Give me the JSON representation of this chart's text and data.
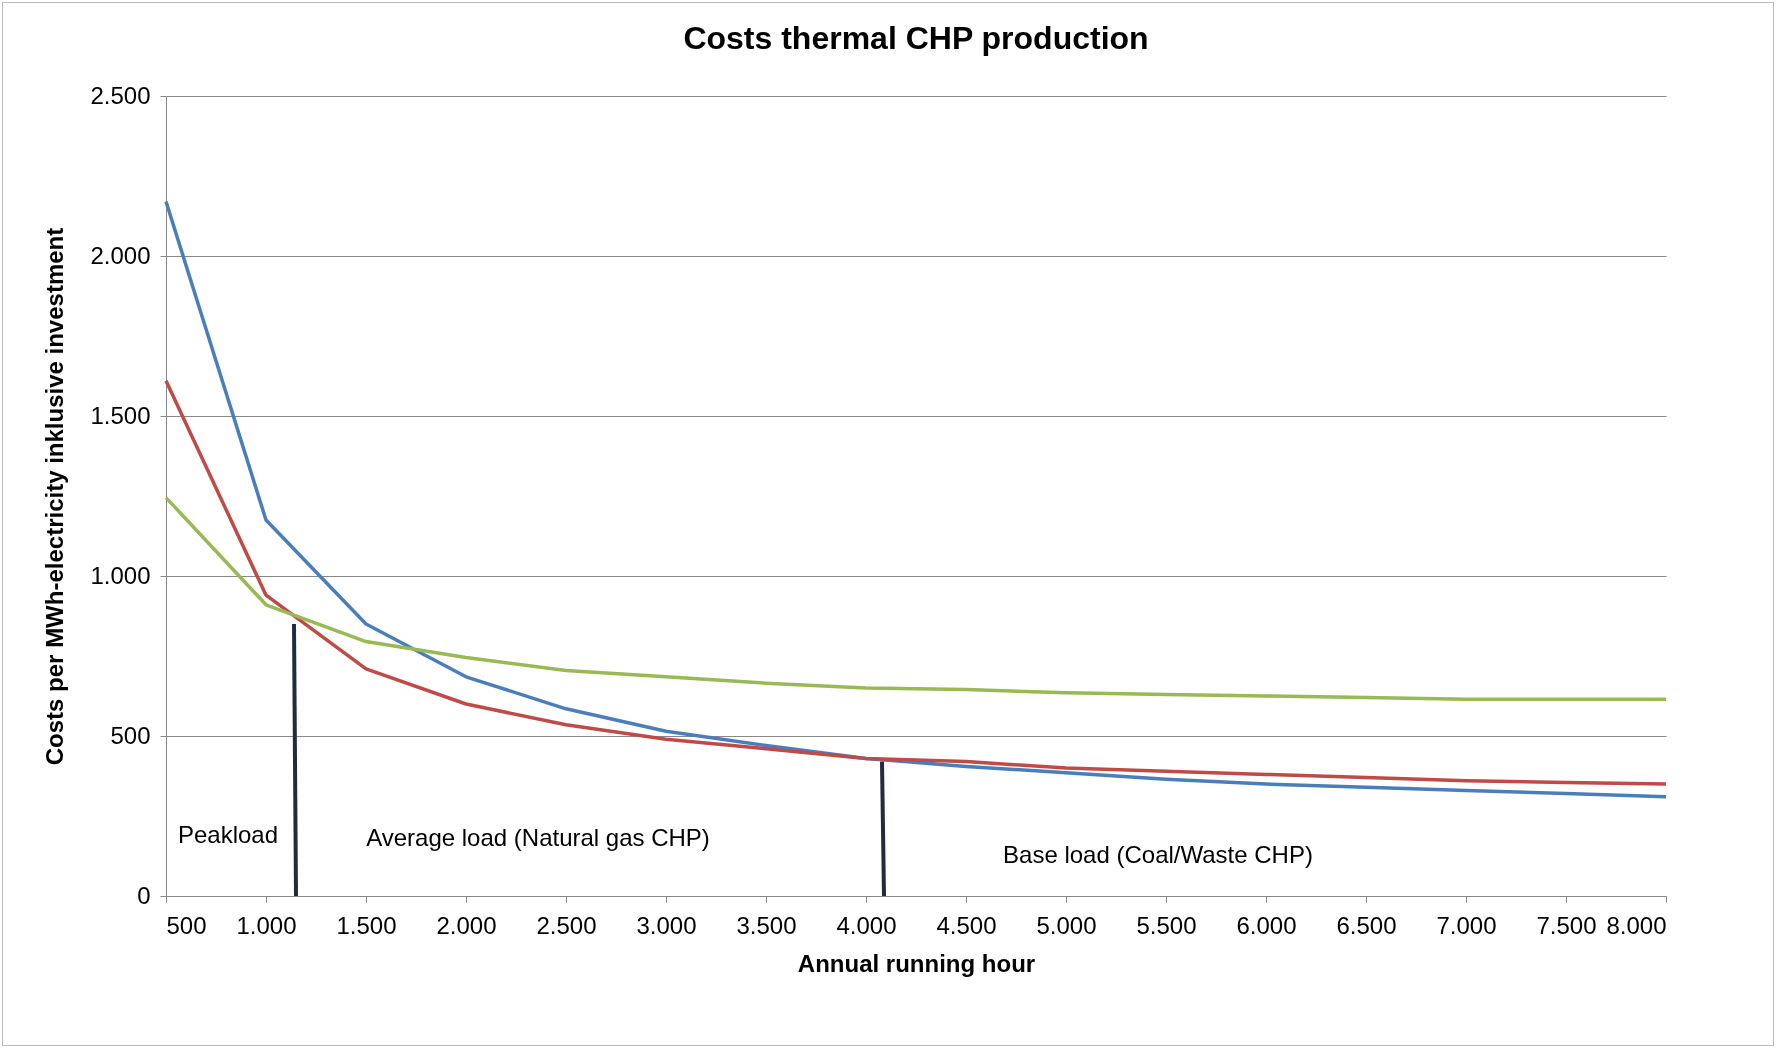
{
  "chart_data": {
    "type": "line",
    "title": "Costs thermal CHP production",
    "xlabel": "Annual running hour",
    "ylabel": "Costs per MWh-electricity inklusive investment",
    "x": [
      500,
      1000,
      1500,
      2000,
      2500,
      3000,
      3500,
      4000,
      4500,
      5000,
      5500,
      6000,
      6500,
      7000,
      7500,
      8000
    ],
    "series": [
      {
        "color": "#4a7ebb",
        "values": [
          2170,
          1175,
          850,
          685,
          585,
          515,
          470,
          430,
          405,
          385,
          365,
          350,
          340,
          330,
          320,
          310
        ]
      },
      {
        "color": "#be4b48",
        "values": [
          1610,
          940,
          710,
          600,
          535,
          490,
          460,
          430,
          420,
          400,
          390,
          380,
          370,
          360,
          355,
          350
        ]
      },
      {
        "color": "#98b954",
        "values": [
          1245,
          910,
          795,
          745,
          705,
          685,
          665,
          650,
          645,
          635,
          630,
          625,
          620,
          615,
          615,
          615
        ]
      },
      {
        "color": "#1f2d3d",
        "x": [
          1140,
          1150
        ],
        "values": [
          850,
          0
        ]
      },
      {
        "color": "#1f2d3d",
        "x": [
          4080,
          4090
        ],
        "values": [
          420,
          0
        ]
      }
    ],
    "xlim": [
      500,
      8000
    ],
    "xticks": [
      500,
      {
        "value": 1000,
        "label": "1.000"
      },
      {
        "value": 1500,
        "label": "1.500"
      },
      {
        "value": 2000,
        "label": "2.000"
      },
      {
        "value": 2500,
        "label": "2.500"
      },
      {
        "value": 3000,
        "label": "3.000"
      },
      {
        "value": 3500,
        "label": "3.500"
      },
      {
        "value": 4000,
        "label": "4.000"
      },
      {
        "value": 4500,
        "label": "4.500"
      },
      {
        "value": 5000,
        "label": "5.000"
      },
      {
        "value": 5500,
        "label": "5.500"
      },
      {
        "value": 6000,
        "label": "6.000"
      },
      {
        "value": 6500,
        "label": "6.500"
      },
      {
        "value": 7000,
        "label": "7.000"
      },
      {
        "value": 7500,
        "label": "7.500"
      },
      {
        "value": 8000,
        "label": "8.000"
      }
    ],
    "ylim": [
      0,
      2500
    ],
    "yticks": [
      0,
      500,
      {
        "value": 1000,
        "label": "1.000"
      },
      {
        "value": 1500,
        "label": "1.500"
      },
      {
        "value": 2000,
        "label": "2.000"
      },
      {
        "value": 2500,
        "label": "2.500"
      }
    ],
    "grid": "y",
    "annotations": [
      "Peakload",
      "Average load (Natural gas CHP)",
      "Base load (Coal/Waste CHP)"
    ]
  }
}
